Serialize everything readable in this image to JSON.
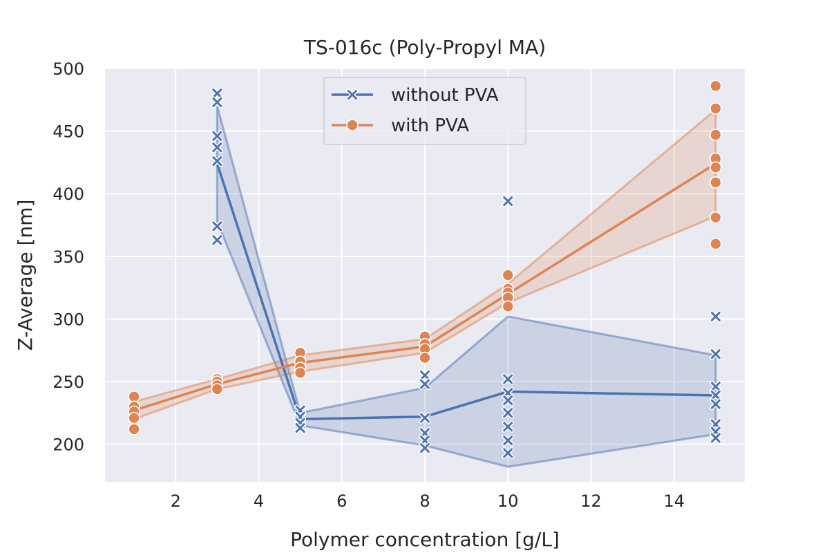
{
  "chart_data": {
    "type": "line",
    "title": "TS-016c (Poly-Propyl MA)",
    "xlabel": "Polymer concentration [g/L]",
    "ylabel": "Z-Average [nm]",
    "xlim": [
      0.3,
      15.7
    ],
    "ylim": [
      170,
      500
    ],
    "xticks": [
      2,
      4,
      6,
      8,
      10,
      12,
      14
    ],
    "yticks": [
      200,
      250,
      300,
      350,
      400,
      450,
      500
    ],
    "grid": true,
    "legend_position": "top-center",
    "series": [
      {
        "name": "without PVA",
        "color": "#4c72b0",
        "marker": "x",
        "mean": [
          {
            "x": 3,
            "y": 424
          },
          {
            "x": 5,
            "y": 220
          },
          {
            "x": 8,
            "y": 222
          },
          {
            "x": 10,
            "y": 242
          },
          {
            "x": 15,
            "y": 239
          }
        ],
        "ci": [
          {
            "x": 3,
            "lo": 378,
            "hi": 470
          },
          {
            "x": 5,
            "lo": 215,
            "hi": 225
          },
          {
            "x": 8,
            "lo": 199,
            "hi": 245
          },
          {
            "x": 10,
            "lo": 182,
            "hi": 302
          },
          {
            "x": 15,
            "lo": 208,
            "hi": 271
          }
        ],
        "points": [
          {
            "x": 3,
            "y": 480
          },
          {
            "x": 3,
            "y": 473
          },
          {
            "x": 3,
            "y": 446
          },
          {
            "x": 3,
            "y": 437
          },
          {
            "x": 3,
            "y": 426
          },
          {
            "x": 3,
            "y": 374
          },
          {
            "x": 3,
            "y": 363
          },
          {
            "x": 5,
            "y": 227
          },
          {
            "x": 5,
            "y": 222
          },
          {
            "x": 5,
            "y": 217
          },
          {
            "x": 5,
            "y": 213
          },
          {
            "x": 8,
            "y": 255
          },
          {
            "x": 8,
            "y": 248
          },
          {
            "x": 8,
            "y": 221
          },
          {
            "x": 8,
            "y": 209
          },
          {
            "x": 8,
            "y": 203
          },
          {
            "x": 8,
            "y": 197
          },
          {
            "x": 10,
            "y": 394
          },
          {
            "x": 10,
            "y": 252
          },
          {
            "x": 10,
            "y": 241
          },
          {
            "x": 10,
            "y": 235
          },
          {
            "x": 10,
            "y": 225
          },
          {
            "x": 10,
            "y": 214
          },
          {
            "x": 10,
            "y": 203
          },
          {
            "x": 10,
            "y": 193
          },
          {
            "x": 15,
            "y": 302
          },
          {
            "x": 15,
            "y": 272
          },
          {
            "x": 15,
            "y": 246
          },
          {
            "x": 15,
            "y": 239
          },
          {
            "x": 15,
            "y": 232
          },
          {
            "x": 15,
            "y": 216
          },
          {
            "x": 15,
            "y": 210
          },
          {
            "x": 15,
            "y": 205
          }
        ]
      },
      {
        "name": "with PVA",
        "color": "#dd8452",
        "marker": "o",
        "mean": [
          {
            "x": 1,
            "y": 227
          },
          {
            "x": 3,
            "y": 248
          },
          {
            "x": 5,
            "y": 265
          },
          {
            "x": 8,
            "y": 278
          },
          {
            "x": 10,
            "y": 320
          },
          {
            "x": 15,
            "y": 424
          }
        ],
        "ci": [
          {
            "x": 1,
            "lo": 220,
            "hi": 234
          },
          {
            "x": 3,
            "lo": 244,
            "hi": 252
          },
          {
            "x": 5,
            "lo": 258,
            "hi": 271
          },
          {
            "x": 8,
            "lo": 273,
            "hi": 284
          },
          {
            "x": 10,
            "lo": 313,
            "hi": 328
          },
          {
            "x": 15,
            "lo": 382,
            "hi": 467
          }
        ],
        "points": [
          {
            "x": 1,
            "y": 238
          },
          {
            "x": 1,
            "y": 230
          },
          {
            "x": 1,
            "y": 226
          },
          {
            "x": 1,
            "y": 221
          },
          {
            "x": 1,
            "y": 212
          },
          {
            "x": 3,
            "y": 252
          },
          {
            "x": 3,
            "y": 250
          },
          {
            "x": 3,
            "y": 247
          },
          {
            "x": 3,
            "y": 244
          },
          {
            "x": 5,
            "y": 273
          },
          {
            "x": 5,
            "y": 266
          },
          {
            "x": 5,
            "y": 261
          },
          {
            "x": 5,
            "y": 257
          },
          {
            "x": 8,
            "y": 286
          },
          {
            "x": 8,
            "y": 280
          },
          {
            "x": 8,
            "y": 276
          },
          {
            "x": 8,
            "y": 269
          },
          {
            "x": 10,
            "y": 335
          },
          {
            "x": 10,
            "y": 324
          },
          {
            "x": 10,
            "y": 321
          },
          {
            "x": 10,
            "y": 317
          },
          {
            "x": 10,
            "y": 310
          },
          {
            "x": 15,
            "y": 486
          },
          {
            "x": 15,
            "y": 468
          },
          {
            "x": 15,
            "y": 447
          },
          {
            "x": 15,
            "y": 428
          },
          {
            "x": 15,
            "y": 421
          },
          {
            "x": 15,
            "y": 409
          },
          {
            "x": 15,
            "y": 381
          },
          {
            "x": 15,
            "y": 360
          }
        ]
      }
    ]
  }
}
